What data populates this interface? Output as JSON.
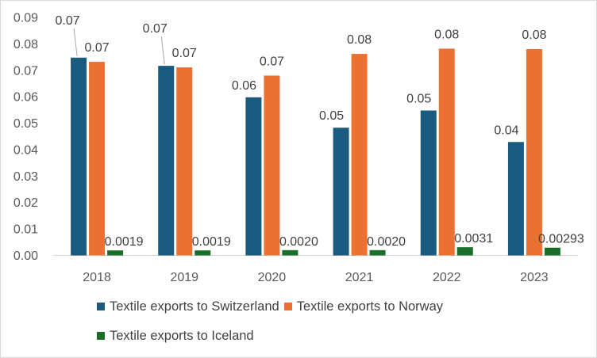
{
  "chart_data": {
    "type": "bar",
    "categories": [
      "2018",
      "2019",
      "2020",
      "2021",
      "2022",
      "2023"
    ],
    "series": [
      {
        "name": "Textile exports to Switzerland",
        "color": "#1a5a7f",
        "values": [
          0.0748,
          0.0717,
          0.0598,
          0.0483,
          0.0548,
          0.0429
        ],
        "labels": [
          "0.07",
          "0.07",
          "0.06",
          "0.05",
          "0.05",
          "0.04"
        ]
      },
      {
        "name": "Textile exports to Norway",
        "color": "#e97132",
        "values": [
          0.0732,
          0.0711,
          0.068,
          0.0762,
          0.0782,
          0.078
        ],
        "labels": [
          "0.07",
          "0.07",
          "0.07",
          "0.08",
          "0.08",
          "0.08"
        ]
      },
      {
        "name": "Textile exports to Iceland",
        "color": "#1b6e2a",
        "values": [
          0.0019,
          0.0019,
          0.002,
          0.002,
          0.0031,
          0.00293
        ],
        "labels": [
          "0.0019",
          "0.0019",
          "0.0020",
          "0.0020",
          "0.0031",
          "0.00293"
        ]
      }
    ],
    "yticks": [
      "0.00",
      "0.01",
      "0.02",
      "0.03",
      "0.04",
      "0.05",
      "0.06",
      "0.07",
      "0.08",
      "0.09"
    ],
    "ylim": [
      0,
      0.09
    ],
    "grid": false,
    "legend_position": "bottom"
  }
}
